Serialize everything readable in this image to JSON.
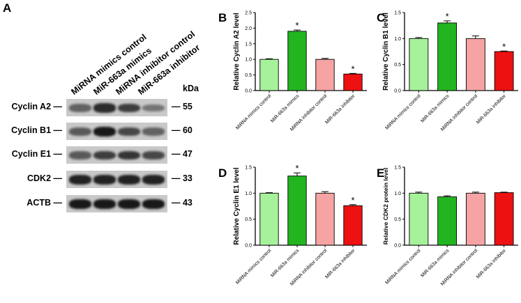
{
  "panel_a": {
    "letter": "A",
    "kda_header": "kDa",
    "samples": [
      "MiRNA mimics control",
      "MiR-663a mimics",
      "MiRNA inhibitor control",
      "MiR-663a inhibitor"
    ],
    "rows": [
      {
        "protein": "Cyclin A2 —",
        "kda": "— 55",
        "intensity": [
          0.55,
          0.85,
          0.75,
          0.45
        ]
      },
      {
        "protein": "Cyclin B1 —",
        "kda": "— 60",
        "intensity": [
          0.6,
          0.95,
          0.7,
          0.55
        ]
      },
      {
        "protein": "Cyclin E1 —",
        "kda": "— 47",
        "intensity": [
          0.6,
          0.75,
          0.8,
          0.7
        ]
      },
      {
        "protein": "CDK2 —",
        "kda": "— 33",
        "intensity": [
          0.9,
          0.9,
          0.9,
          0.9
        ]
      },
      {
        "protein": "ACTB —",
        "kda": "— 43",
        "intensity": [
          0.95,
          0.95,
          0.95,
          0.95
        ]
      }
    ]
  },
  "chart_data": [
    {
      "letter": "B",
      "type": "bar",
      "ylabel": "Relative Cyclin A2 level",
      "categories": [
        "MiRNA mimics control",
        "MiR-663a mimics",
        "MiRNA inhibitor control",
        "MiR-663a inhibitor"
      ],
      "values": [
        1.0,
        1.9,
        1.0,
        0.53
      ],
      "errors": [
        0.02,
        0.04,
        0.03,
        0.02
      ],
      "significance": [
        "",
        "*",
        "",
        "*"
      ],
      "ylim": [
        0,
        2.5
      ],
      "yticks": [
        "0.0",
        "0.5",
        "1.0",
        "1.5",
        "2.0",
        "2.5"
      ],
      "colors": [
        "#a6f29a",
        "#22b520",
        "#f5a3a3",
        "#ee1111"
      ]
    },
    {
      "letter": "C",
      "type": "bar",
      "ylabel": "Relative Cyclin B1 level",
      "categories": [
        "MiRNA mimics control",
        "MiR-663a mimics",
        "MiRNA inhibitor control",
        "MiR-663a inhibitor"
      ],
      "values": [
        1.0,
        1.3,
        1.0,
        0.75
      ],
      "errors": [
        0.02,
        0.04,
        0.05,
        0.01
      ],
      "significance": [
        "",
        "*",
        "",
        "*"
      ],
      "ylim": [
        0,
        1.5
      ],
      "yticks": [
        "0.0",
        "0.5",
        "1.0",
        "1.5"
      ],
      "colors": [
        "#a6f29a",
        "#22b520",
        "#f5a3a3",
        "#ee1111"
      ]
    },
    {
      "letter": "D",
      "type": "bar",
      "ylabel": "Relative Cyclin E1 level",
      "categories": [
        "MiRNA mimics control",
        "MiR-663a mimics",
        "MiRNA inhibitor control",
        "MiR-663a inhibitor"
      ],
      "values": [
        1.0,
        1.33,
        1.0,
        0.76
      ],
      "errors": [
        0.01,
        0.06,
        0.03,
        0.02
      ],
      "significance": [
        "",
        "*",
        "",
        "*"
      ],
      "ylim": [
        0,
        1.5
      ],
      "yticks": [
        "0.0",
        "0.5",
        "1.0",
        "1.5"
      ],
      "colors": [
        "#a6f29a",
        "#22b520",
        "#f5a3a3",
        "#ee1111"
      ]
    },
    {
      "letter": "E",
      "type": "bar",
      "ylabel": "Relative CDK2 protein level",
      "categories": [
        "MiRNA mimics control",
        "MiR-663a mimics",
        "MiRNA inhibitor control",
        "MiR-663a inhibitor"
      ],
      "values": [
        1.0,
        0.93,
        1.0,
        1.01
      ],
      "errors": [
        0.02,
        0.02,
        0.02,
        0.01
      ],
      "significance": [
        "",
        "",
        "",
        ""
      ],
      "ylim": [
        0,
        1.5
      ],
      "yticks": [
        "0.0",
        "0.5",
        "1.0",
        "1.5"
      ],
      "colors": [
        "#a6f29a",
        "#22b520",
        "#f5a3a3",
        "#ee1111"
      ]
    }
  ]
}
